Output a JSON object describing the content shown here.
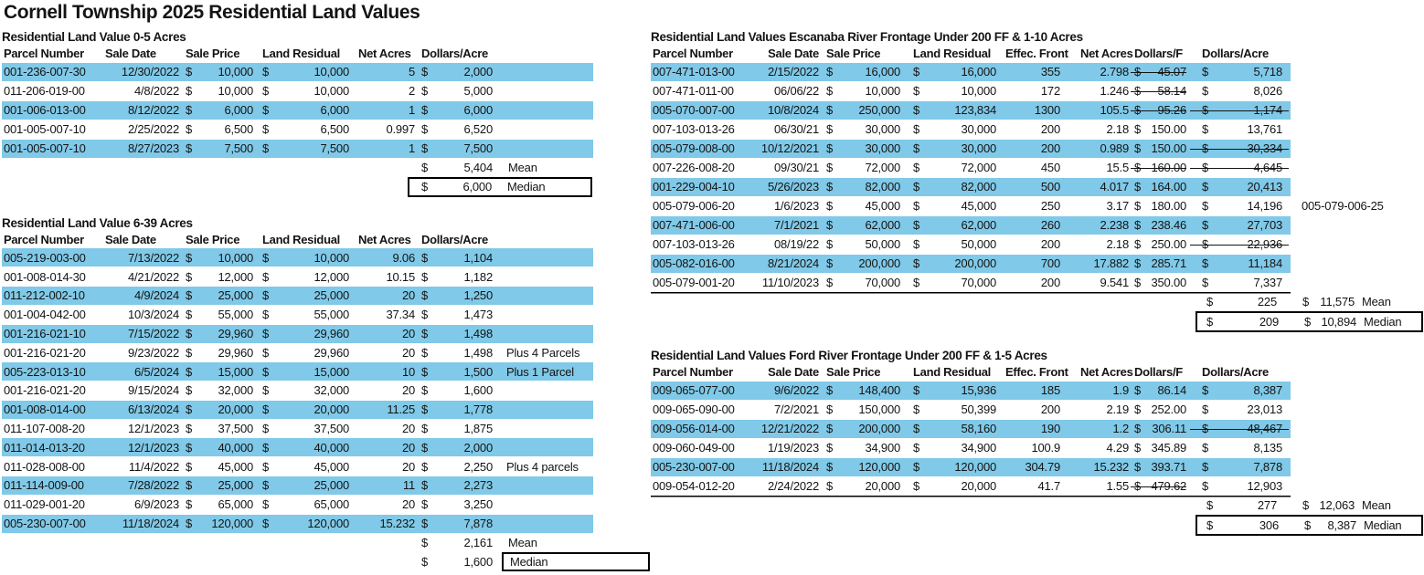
{
  "title": "Cornell Township 2025 Residential Land Values",
  "colors": {
    "highlight": "#80C9E8",
    "text": "#141414",
    "border": "#000000"
  },
  "tables": {
    "t1": {
      "title": "Residential Land Value 0-5 Acres",
      "columns": [
        "Parcel Number",
        "Sale Date",
        "Sale Price",
        "Land Residual",
        "Net Acres",
        "Dollars/Acre"
      ],
      "rows": [
        {
          "parcel": "001-236-007-30",
          "date": "12/30/2022",
          "price": "10,000",
          "residual": "10,000",
          "acres": "5",
          "dpa": "2,000",
          "note": "",
          "hl": true
        },
        {
          "parcel": "011-206-019-00",
          "date": "4/8/2022",
          "price": "10,000",
          "residual": "10,000",
          "acres": "2",
          "dpa": "5,000",
          "note": "",
          "hl": false
        },
        {
          "parcel": "001-006-013-00",
          "date": "8/12/2022",
          "price": "6,000",
          "residual": "6,000",
          "acres": "1",
          "dpa": "6,000",
          "note": "",
          "hl": true
        },
        {
          "parcel": "001-005-007-10",
          "date": "2/25/2022",
          "price": "6,500",
          "residual": "6,500",
          "acres": "0.997",
          "dpa": "6,520",
          "note": "",
          "hl": false
        },
        {
          "parcel": "001-005-007-10",
          "date": "8/27/2023",
          "price": "7,500",
          "residual": "7,500",
          "acres": "1",
          "dpa": "7,500",
          "note": "",
          "hl": true
        }
      ],
      "mean": {
        "value": "5,404",
        "label": "Mean"
      },
      "median": {
        "value": "6,000",
        "label": "Median"
      }
    },
    "t2": {
      "title": "Residential Land Value 6-39 Acres",
      "columns": [
        "Parcel Number",
        "Sale Date",
        "Sale Price",
        "Land Residual",
        "Net Acres",
        "Dollars/Acre"
      ],
      "rows": [
        {
          "parcel": "005-219-003-00",
          "date": "7/13/2022",
          "price": "10,000",
          "residual": "10,000",
          "acres": "9.06",
          "dpa": "1,104",
          "note": "",
          "hl": true
        },
        {
          "parcel": "001-008-014-30",
          "date": "4/21/2022",
          "price": "12,000",
          "residual": "12,000",
          "acres": "10.15",
          "dpa": "1,182",
          "note": "",
          "hl": false
        },
        {
          "parcel": "011-212-002-10",
          "date": "4/9/2024",
          "price": "25,000",
          "residual": "25,000",
          "acres": "20",
          "dpa": "1,250",
          "note": "",
          "hl": true
        },
        {
          "parcel": "001-004-042-00",
          "date": "10/3/2024",
          "price": "55,000",
          "residual": "55,000",
          "acres": "37.34",
          "dpa": "1,473",
          "note": "",
          "hl": false
        },
        {
          "parcel": "001-216-021-10",
          "date": "7/15/2022",
          "price": "29,960",
          "residual": "29,960",
          "acres": "20",
          "dpa": "1,498",
          "note": "",
          "hl": true
        },
        {
          "parcel": "001-216-021-20",
          "date": "9/23/2022",
          "price": "29,960",
          "residual": "29,960",
          "acres": "20",
          "dpa": "1,498",
          "note": "Plus 4 Parcels",
          "hl": false
        },
        {
          "parcel": "005-223-013-10",
          "date": "6/5/2024",
          "price": "15,000",
          "residual": "15,000",
          "acres": "10",
          "dpa": "1,500",
          "note": "Plus 1 Parcel",
          "hl": true
        },
        {
          "parcel": "001-216-021-20",
          "date": "9/15/2024",
          "price": "32,000",
          "residual": "32,000",
          "acres": "20",
          "dpa": "1,600",
          "note": "",
          "hl": false
        },
        {
          "parcel": "001-008-014-00",
          "date": "6/13/2024",
          "price": "20,000",
          "residual": "20,000",
          "acres": "11.25",
          "dpa": "1,778",
          "note": "",
          "hl": true
        },
        {
          "parcel": "011-107-008-20",
          "date": "12/1/2023",
          "price": "37,500",
          "residual": "37,500",
          "acres": "20",
          "dpa": "1,875",
          "note": "",
          "hl": false
        },
        {
          "parcel": "011-014-013-20",
          "date": "12/1/2023",
          "price": "40,000",
          "residual": "40,000",
          "acres": "20",
          "dpa": "2,000",
          "note": "",
          "hl": true
        },
        {
          "parcel": "011-028-008-00",
          "date": "11/4/2022",
          "price": "45,000",
          "residual": "45,000",
          "acres": "20",
          "dpa": "2,250",
          "note": "Plus 4 parcels",
          "hl": false
        },
        {
          "parcel": "011-114-009-00",
          "date": "7/28/2022",
          "price": "25,000",
          "residual": "25,000",
          "acres": "11",
          "dpa": "2,273",
          "note": "",
          "hl": true
        },
        {
          "parcel": "011-029-001-20",
          "date": "6/9/2023",
          "price": "65,000",
          "residual": "65,000",
          "acres": "20",
          "dpa": "3,250",
          "note": "",
          "hl": false
        },
        {
          "parcel": "005-230-007-00",
          "date": "11/18/2024",
          "price": "120,000",
          "residual": "120,000",
          "acres": "15.232",
          "dpa": "7,878",
          "note": "",
          "hl": true
        }
      ],
      "mean": {
        "value": "2,161",
        "label": "Mean"
      },
      "median": {
        "value": "1,600",
        "label": "Median"
      }
    },
    "t3": {
      "title": "Residential Land Values Escanaba River Frontage Under 200 FF & 1-10 Acres",
      "columns": [
        "Parcel Number",
        "Sale Date",
        "Sale Price",
        "Land Residual",
        "Effec. Front",
        "Net Acres",
        "Dollars/F",
        "Dollars/Acre"
      ],
      "rows": [
        {
          "parcel": "007-471-013-00",
          "date": "2/15/2022",
          "price": "16,000",
          "residual": "16,000",
          "front": "355",
          "acres": "2.798",
          "dpf": "45.07",
          "dpf_struck": true,
          "dpa": "5,718",
          "dpa_struck": false,
          "note": "",
          "hl": true
        },
        {
          "parcel": "007-471-011-00",
          "date": "06/06/22",
          "price": "10,000",
          "residual": "10,000",
          "front": "172",
          "acres": "1.246",
          "dpf": "58.14",
          "dpf_struck": true,
          "dpa": "8,026",
          "dpa_struck": false,
          "note": "",
          "hl": false
        },
        {
          "parcel": "005-070-007-00",
          "date": "10/8/2024",
          "price": "250,000",
          "residual": "123,834",
          "front": "1300",
          "acres": "105.5",
          "dpf": "95.26",
          "dpf_struck": true,
          "dpa": "1,174",
          "dpa_struck": true,
          "note": "",
          "hl": true
        },
        {
          "parcel": "007-103-013-26",
          "date": "06/30/21",
          "price": "30,000",
          "residual": "30,000",
          "front": "200",
          "acres": "2.18",
          "dpf": "150.00",
          "dpf_struck": false,
          "dpa": "13,761",
          "dpa_struck": false,
          "note": "",
          "hl": false
        },
        {
          "parcel": "005-079-008-00",
          "date": "10/12/2021",
          "price": "30,000",
          "residual": "30,000",
          "front": "200",
          "acres": "0.989",
          "dpf": "150.00",
          "dpf_struck": false,
          "dpa": "30,334",
          "dpa_struck": true,
          "note": "",
          "hl": true
        },
        {
          "parcel": "007-226-008-20",
          "date": "09/30/21",
          "price": "72,000",
          "residual": "72,000",
          "front": "450",
          "acres": "15.5",
          "dpf": "160.00",
          "dpf_struck": true,
          "dpa": "4,645",
          "dpa_struck": true,
          "note": "",
          "hl": false
        },
        {
          "parcel": "001-229-004-10",
          "date": "5/26/2023",
          "price": "82,000",
          "residual": "82,000",
          "front": "500",
          "acres": "4.017",
          "dpf": "164.00",
          "dpf_struck": false,
          "dpa": "20,413",
          "dpa_struck": false,
          "note": "",
          "hl": true
        },
        {
          "parcel": "005-079-006-20",
          "date": "1/6/2023",
          "price": "45,000",
          "residual": "45,000",
          "front": "250",
          "acres": "3.17",
          "dpf": "180.00",
          "dpf_struck": false,
          "dpa": "14,196",
          "dpa_struck": false,
          "note": "005-079-006-25",
          "hl": false
        },
        {
          "parcel": "007-471-006-00",
          "date": "7/1/2021",
          "price": "62,000",
          "residual": "62,000",
          "front": "260",
          "acres": "2.238",
          "dpf": "238.46",
          "dpf_struck": false,
          "dpa": "27,703",
          "dpa_struck": false,
          "note": "",
          "hl": true
        },
        {
          "parcel": "007-103-013-26",
          "date": "08/19/22",
          "price": "50,000",
          "residual": "50,000",
          "front": "200",
          "acres": "2.18",
          "dpf": "250.00",
          "dpf_struck": false,
          "dpa": "22,936",
          "dpa_struck": true,
          "note": "",
          "hl": false
        },
        {
          "parcel": "005-082-016-00",
          "date": "8/21/2024",
          "price": "200,000",
          "residual": "200,000",
          "front": "700",
          "acres": "17.882",
          "dpf": "285.71",
          "dpf_struck": false,
          "dpa": "11,184",
          "dpa_struck": false,
          "note": "",
          "hl": true
        },
        {
          "parcel": "005-079-001-20",
          "date": "11/10/2023",
          "price": "70,000",
          "residual": "70,000",
          "front": "200",
          "acres": "9.541",
          "dpf": "350.00",
          "dpf_struck": false,
          "dpa": "7,337",
          "dpa_struck": false,
          "note": "",
          "hl": false
        }
      ],
      "mean": {
        "front": "225",
        "acre": "11,575",
        "label": "Mean"
      },
      "median": {
        "front": "209",
        "acre": "10,894",
        "label": "Median"
      }
    },
    "t4": {
      "title": "Residential Land Values Ford River Frontage Under 200 FF & 1-5 Acres",
      "columns": [
        "Parcel Number",
        "Sale Date",
        "Sale Price",
        "Land Residual",
        "Effec. Front",
        "Net Acres",
        "Dollars/F",
        "Dollars/Acre"
      ],
      "rows": [
        {
          "parcel": "009-065-077-00",
          "date": "9/6/2022",
          "price": "148,400",
          "residual": "15,936",
          "front": "185",
          "acres": "1.9",
          "dpf": "86.14",
          "dpf_struck": false,
          "dpa": "8,387",
          "dpa_struck": false,
          "note": "",
          "hl": true
        },
        {
          "parcel": "009-065-090-00",
          "date": "7/2/2021",
          "price": "150,000",
          "residual": "50,399",
          "front": "200",
          "acres": "2.19",
          "dpf": "252.00",
          "dpf_struck": false,
          "dpa": "23,013",
          "dpa_struck": false,
          "note": "",
          "hl": false
        },
        {
          "parcel": "009-056-014-00",
          "date": "12/21/2022",
          "price": "200,000",
          "residual": "58,160",
          "front": "190",
          "acres": "1.2",
          "dpf": "306.11",
          "dpf_struck": false,
          "dpa": "48,467",
          "dpa_struck": true,
          "note": "",
          "hl": true
        },
        {
          "parcel": "009-060-049-00",
          "date": "1/19/2023",
          "price": "34,900",
          "residual": "34,900",
          "front": "100.9",
          "acres": "4.29",
          "dpf": "345.89",
          "dpf_struck": false,
          "dpa": "8,135",
          "dpa_struck": false,
          "note": "",
          "hl": false
        },
        {
          "parcel": "005-230-007-00",
          "date": "11/18/2024",
          "price": "120,000",
          "residual": "120,000",
          "front": "304.79",
          "acres": "15.232",
          "dpf": "393.71",
          "dpf_struck": false,
          "dpa": "7,878",
          "dpa_struck": false,
          "note": "",
          "hl": true
        },
        {
          "parcel": "009-054-012-20",
          "date": "2/24/2022",
          "price": "20,000",
          "residual": "20,000",
          "front": "41.7",
          "acres": "1.55",
          "dpf": "479.62",
          "dpf_struck": true,
          "dpa": "12,903",
          "dpa_struck": false,
          "note": "",
          "hl": false
        }
      ],
      "mean": {
        "front": "277",
        "acre": "12,063",
        "label": "Mean"
      },
      "median": {
        "front": "306",
        "acre": "8,387",
        "label": "Median"
      }
    }
  }
}
